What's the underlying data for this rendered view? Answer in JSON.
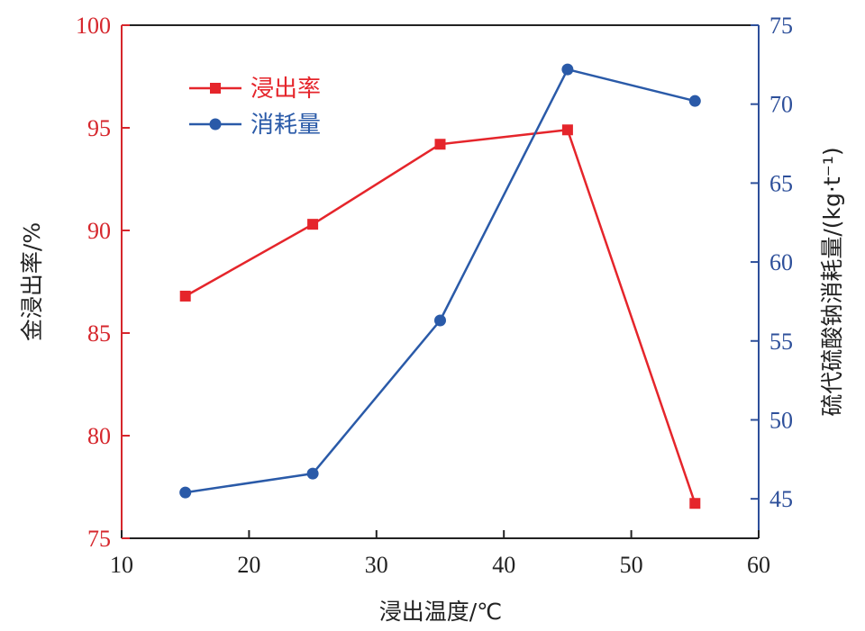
{
  "chart_data": {
    "type": "line",
    "x": [
      15,
      25,
      35,
      45,
      55
    ],
    "xlabel": "浸出温度/℃",
    "xlim": [
      10,
      60
    ],
    "xticks": [
      10,
      20,
      30,
      40,
      50,
      60
    ],
    "ylabel_left": "金浸出率/%",
    "ylim_left": [
      75,
      100
    ],
    "yticks_left": [
      75,
      80,
      85,
      90,
      95,
      100
    ],
    "ylabel_right": "硫代硫酸钠消耗量/(kg·t⁻¹)",
    "ylim_right": [
      42.5,
      75
    ],
    "yticks_right": [
      45,
      50,
      55,
      60,
      65,
      70,
      75
    ],
    "grid": false,
    "legend_position": "top-left",
    "series": [
      {
        "name": "浸出率",
        "axis": "left",
        "marker": "square",
        "color": "#e5252b",
        "values": [
          86.8,
          90.3,
          94.2,
          94.9,
          76.7
        ]
      },
      {
        "name": "消耗量",
        "axis": "right",
        "marker": "circle",
        "color": "#2a5aa8",
        "values": [
          45.4,
          46.6,
          56.3,
          72.2,
          70.2
        ]
      }
    ],
    "colors": {
      "left_axis": "#d6262c",
      "right_axis": "#2d4f9a",
      "bottom_axis": "#222222"
    }
  }
}
